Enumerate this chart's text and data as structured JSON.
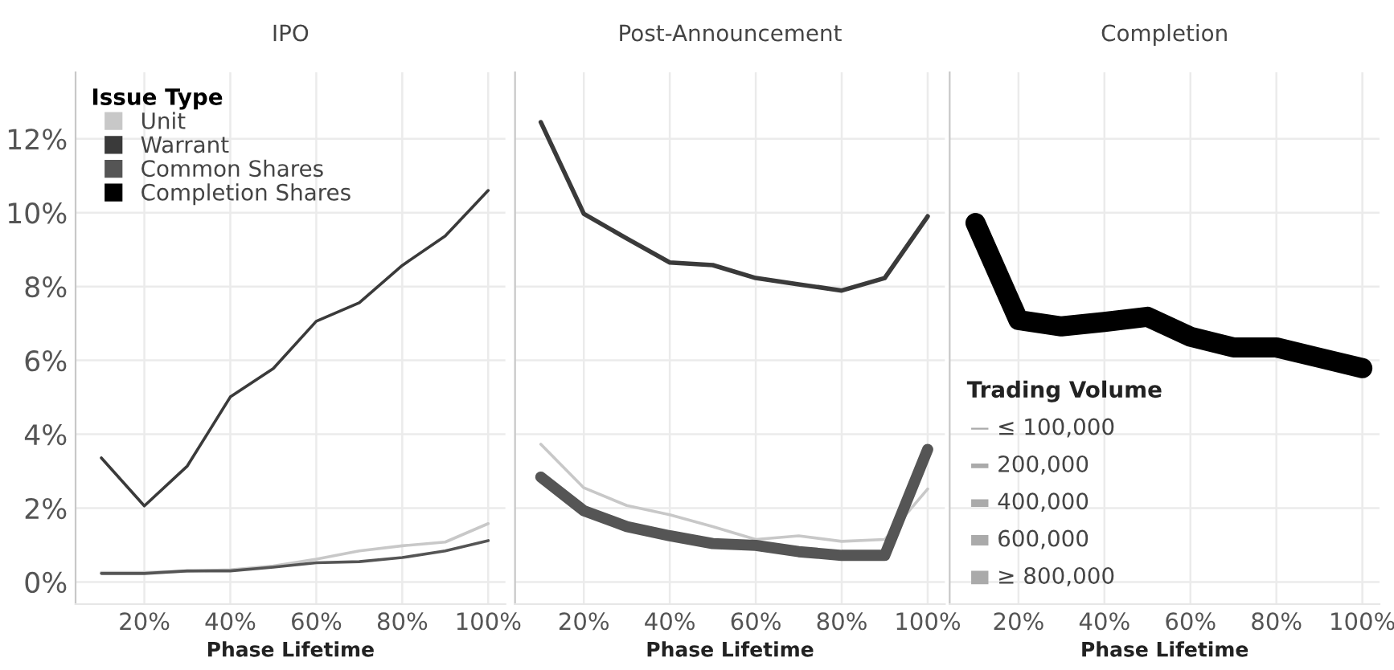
{
  "chart_data": [
    {
      "type": "line",
      "title": "IPO",
      "xlabel": "Phase Lifetime",
      "legend": "top left",
      "legend_title": "Issue Type",
      "grid": true,
      "x": [
        10,
        20,
        30,
        40,
        50,
        60,
        70,
        80,
        90,
        100
      ],
      "xlim": [
        4,
        104
      ],
      "ylim": [
        -0.6,
        13.8
      ],
      "xticks": [
        {
          "value": 20,
          "label": "20%"
        },
        {
          "value": 40,
          "label": "40%"
        },
        {
          "value": 60,
          "label": "60%"
        },
        {
          "value": 80,
          "label": "80%"
        },
        {
          "value": 100,
          "label": "100%"
        }
      ],
      "yticks": [
        {
          "value": 0,
          "label": "0%"
        },
        {
          "value": 2,
          "label": "2%"
        },
        {
          "value": 4,
          "label": "4%"
        },
        {
          "value": 6,
          "label": "6%"
        },
        {
          "value": 8,
          "label": "8%"
        },
        {
          "value": 10,
          "label": "10%"
        },
        {
          "value": 12,
          "label": "12%"
        }
      ],
      "series": [
        {
          "name": "Unit",
          "color": "#c8c8c8",
          "values": [
            0.26,
            0.26,
            0.29,
            0.33,
            0.43,
            0.62,
            0.84,
            0.98,
            1.08,
            1.58
          ]
        },
        {
          "name": "Warrant",
          "color": "#3a3a3a",
          "values": [
            3.36,
            2.06,
            3.14,
            5.01,
            5.78,
            7.06,
            7.56,
            8.57,
            9.37,
            10.6
          ]
        },
        {
          "name": "Common Shares",
          "color": "#555555",
          "values": [
            0.23,
            0.23,
            0.3,
            0.3,
            0.4,
            0.52,
            0.55,
            0.66,
            0.84,
            1.12
          ]
        },
        {
          "name": "Completion Shares",
          "color": "#000000",
          "values": [
            null,
            null,
            null,
            null,
            null,
            null,
            null,
            null,
            null,
            null
          ]
        }
      ]
    },
    {
      "type": "line",
      "title": "Post-Announcement",
      "xlabel": "Phase Lifetime",
      "grid": true,
      "tick_labels": "x",
      "x": [
        10,
        20,
        30,
        40,
        50,
        60,
        70,
        80,
        90,
        100
      ],
      "xlim": [
        4,
        104
      ],
      "ylim": [
        -0.6,
        13.8
      ],
      "xticks": [
        {
          "value": 20,
          "label": "20%"
        },
        {
          "value": 40,
          "label": "40%"
        },
        {
          "value": 60,
          "label": "60%"
        },
        {
          "value": 80,
          "label": "80%"
        },
        {
          "value": 100,
          "label": "100%"
        }
      ],
      "yticks": [
        0,
        2,
        4,
        6,
        8,
        10,
        12
      ],
      "series": [
        {
          "color": "#c8c8c8",
          "values": [
            3.73,
            2.55,
            2.07,
            1.82,
            1.5,
            1.15,
            1.25,
            1.1,
            1.15,
            2.52
          ]
        },
        {
          "color": "#3a3a3a",
          "values": [
            12.45,
            9.97,
            9.3,
            8.65,
            8.58,
            8.23,
            8.06,
            7.89,
            8.23,
            9.9
          ]
        },
        {
          "color": "#555555",
          "values": [
            2.84,
            1.93,
            1.5,
            1.25,
            1.04,
            0.99,
            0.82,
            0.72,
            0.72,
            3.59
          ]
        }
      ]
    },
    {
      "type": "line",
      "title": "Completion",
      "xlabel": "Phase Lifetime",
      "grid": true,
      "tick_labels": "x",
      "x": [
        10,
        20,
        30,
        40,
        50,
        60,
        70,
        80,
        90,
        100
      ],
      "xlim": [
        4,
        104
      ],
      "ylim": [
        -0.6,
        13.8
      ],
      "xticks": [
        {
          "value": 20,
          "label": "20%"
        },
        {
          "value": 40,
          "label": "40%"
        },
        {
          "value": 60,
          "label": "60%"
        },
        {
          "value": 80,
          "label": "80%"
        },
        {
          "value": 100,
          "label": "100%"
        }
      ],
      "yticks": [
        0,
        2,
        4,
        6,
        8,
        10,
        12
      ],
      "annotations": [
        "Trading Volume",
        "≤ 100,000",
        "200,000",
        "400,000",
        "600,000",
        "≥ 800,000"
      ],
      "series": [
        {
          "color": "#000000",
          "values": [
            9.72,
            7.09,
            6.92,
            7.04,
            7.18,
            6.64,
            6.35,
            6.35,
            6.07,
            5.79
          ]
        }
      ]
    }
  ]
}
